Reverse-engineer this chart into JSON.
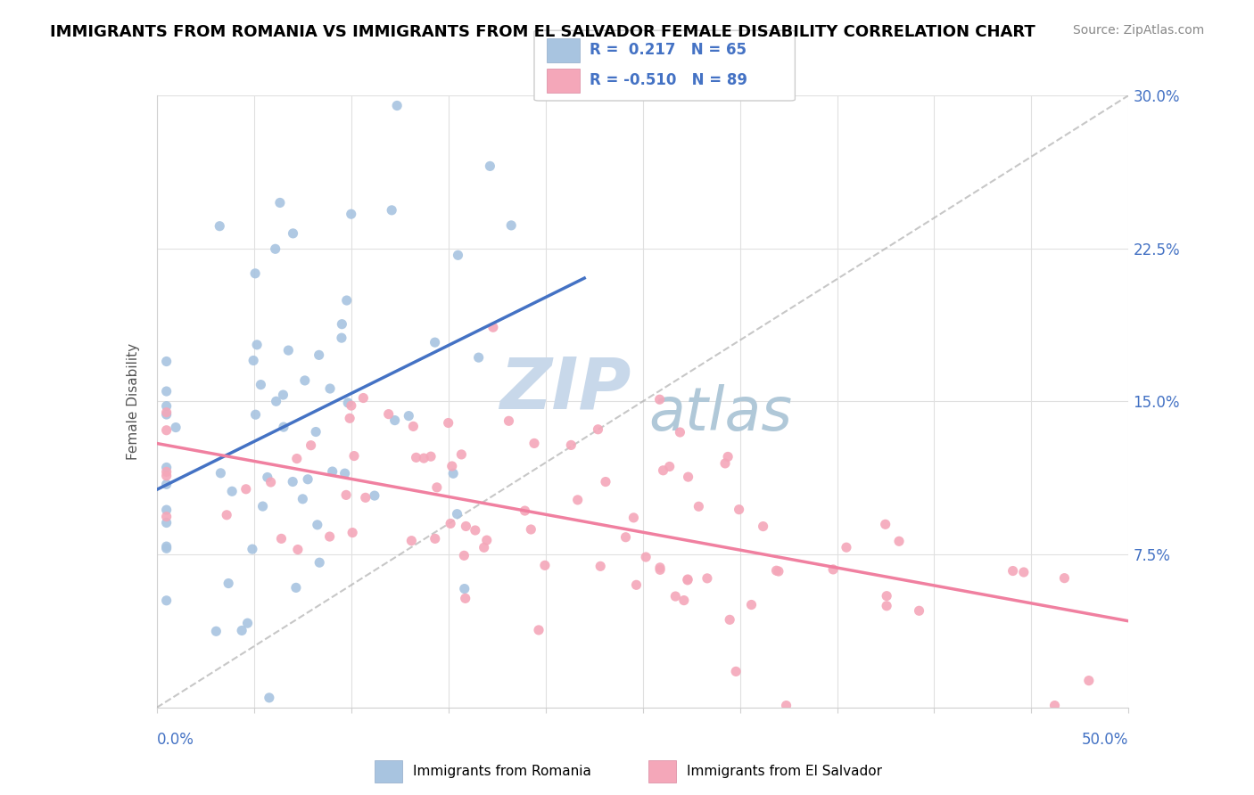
{
  "title": "IMMIGRANTS FROM ROMANIA VS IMMIGRANTS FROM EL SALVADOR FEMALE DISABILITY CORRELATION CHART",
  "source": "Source: ZipAtlas.com",
  "xlim": [
    0.0,
    0.5
  ],
  "ylim": [
    0.0,
    0.3
  ],
  "legend_r1": "0.217",
  "legend_n1": "65",
  "legend_r2": "-0.510",
  "legend_n2": "89",
  "color_romania": "#a8c4e0",
  "color_salvador": "#f4a7b9",
  "color_romania_line": "#4472c4",
  "color_salvador_line": "#f080a0",
  "color_diagonal": "#b0b0b0",
  "watermark_zip": "ZIP",
  "watermark_atlas": "atlas",
  "watermark_color_zip": "#c8d8ea",
  "watermark_color_atlas": "#b0c8d8"
}
